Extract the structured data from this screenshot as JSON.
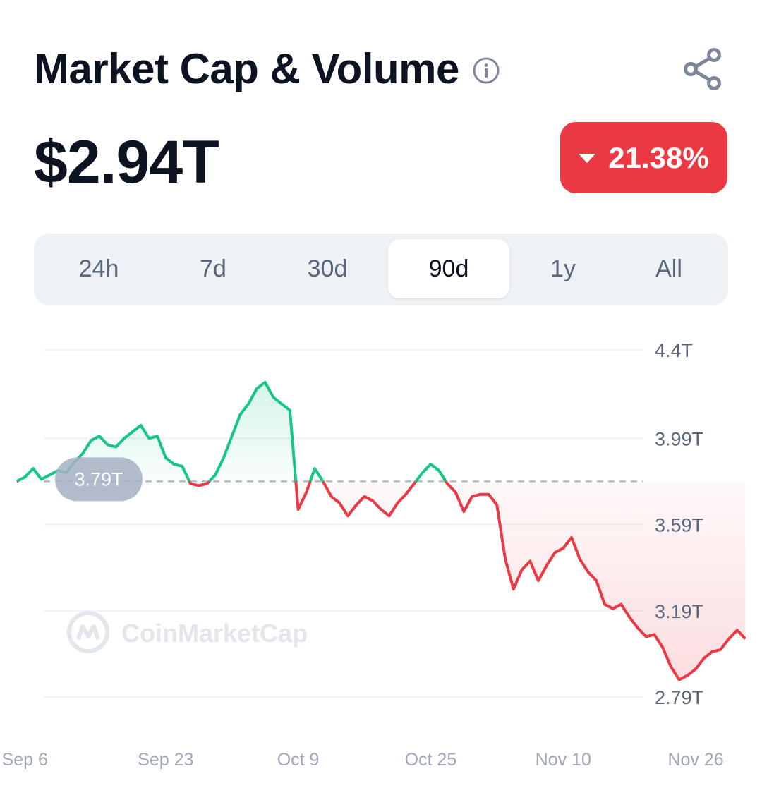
{
  "header": {
    "title": "Market Cap & Volume"
  },
  "price": {
    "value": "$2.94T"
  },
  "change": {
    "text": "21.38%",
    "direction": "down",
    "color": "#ea3943"
  },
  "tabs": [
    {
      "label": "24h",
      "active": false
    },
    {
      "label": "7d",
      "active": false
    },
    {
      "label": "30d",
      "active": false
    },
    {
      "label": "90d",
      "active": true
    },
    {
      "label": "1y",
      "active": false
    },
    {
      "label": "All",
      "active": false
    }
  ],
  "watermark": {
    "text": "CoinMarketCap"
  },
  "colors": {
    "up": "#16c784",
    "down": "#ea3943",
    "grid": "#eff2f5",
    "reference": "#a6b0c3"
  },
  "chart_data": {
    "type": "line",
    "title": "",
    "xlabel": "",
    "ylabel": "",
    "y_ticks": [
      "4.4T",
      "3.99T",
      "3.59T",
      "3.19T",
      "2.79T"
    ],
    "y_tick_values": [
      4.4,
      3.99,
      3.59,
      3.19,
      2.79
    ],
    "x_ticks": [
      "Sep 6",
      "Sep 23",
      "Oct 9",
      "Oct 25",
      "Nov 10",
      "Nov 26"
    ],
    "x_tick_positions": [
      1,
      18,
      34,
      50,
      66,
      82
    ],
    "ylim": [
      2.79,
      4.4
    ],
    "xlim": [
      -2,
      90
    ],
    "grid": true,
    "reference": {
      "value": 3.79,
      "label": "3.79T"
    },
    "series": [
      {
        "x": [
          0,
          1,
          2,
          3,
          4,
          5,
          6,
          7,
          8,
          9,
          10,
          11,
          12,
          13,
          14,
          15,
          16,
          17,
          18,
          19,
          20,
          21,
          22,
          23,
          24,
          25,
          26,
          27,
          28,
          29,
          30,
          31,
          32,
          33,
          34,
          35,
          36,
          37,
          38,
          39,
          40,
          41,
          42,
          43,
          44,
          45,
          46,
          47,
          48,
          49,
          50,
          51,
          52,
          53,
          54,
          55,
          56,
          57,
          58,
          59,
          60,
          61,
          62,
          63,
          64,
          65,
          66,
          67,
          68,
          69,
          70,
          71,
          72,
          73,
          74,
          75,
          76,
          77,
          78,
          79,
          80,
          81,
          82,
          83,
          84,
          85,
          86,
          87,
          88
        ],
        "values": [
          3.79,
          3.81,
          3.85,
          3.8,
          3.82,
          3.84,
          3.83,
          3.88,
          3.92,
          3.98,
          4.0,
          3.96,
          3.95,
          3.99,
          4.02,
          4.05,
          3.99,
          4.0,
          3.9,
          3.87,
          3.86,
          3.78,
          3.77,
          3.78,
          3.82,
          3.9,
          4.0,
          4.1,
          4.15,
          4.22,
          4.25,
          4.18,
          4.15,
          4.12,
          3.66,
          3.74,
          3.85,
          3.79,
          3.72,
          3.69,
          3.63,
          3.68,
          3.72,
          3.7,
          3.66,
          3.63,
          3.69,
          3.73,
          3.78,
          3.83,
          3.87,
          3.84,
          3.78,
          3.74,
          3.65,
          3.72,
          3.73,
          3.73,
          3.68,
          3.43,
          3.29,
          3.38,
          3.42,
          3.33,
          3.4,
          3.46,
          3.48,
          3.53,
          3.43,
          3.37,
          3.33,
          3.22,
          3.2,
          3.22,
          3.16,
          3.11,
          3.07,
          3.08,
          3.02,
          2.93,
          2.87,
          2.89,
          2.92,
          2.97,
          3.0,
          3.01,
          3.06,
          3.1,
          3.06
        ]
      }
    ]
  }
}
